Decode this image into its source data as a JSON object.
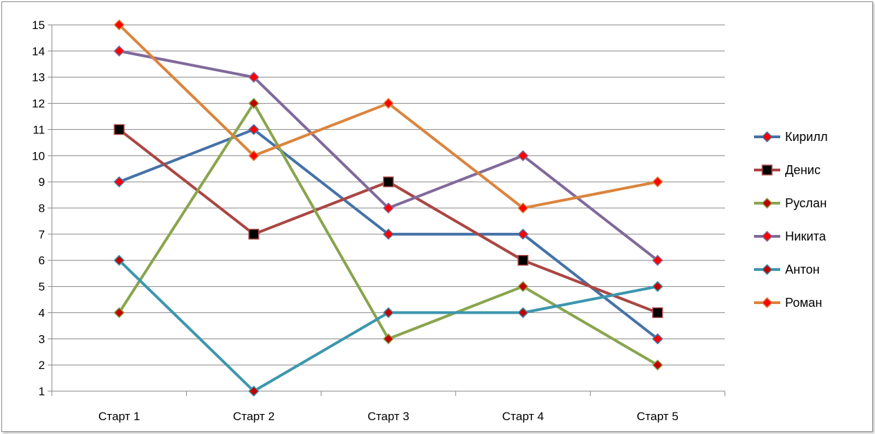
{
  "chart_data": {
    "type": "line",
    "title": "",
    "xlabel": "",
    "ylabel": "",
    "categories": [
      "Старт 1",
      "Старт 2",
      "Старт 3",
      "Старт 4",
      "Старт 5"
    ],
    "ylim": [
      1,
      15
    ],
    "yticks": [
      1,
      2,
      3,
      4,
      5,
      6,
      7,
      8,
      9,
      10,
      11,
      12,
      13,
      14,
      15
    ],
    "grid": true,
    "legend_position": "right",
    "series": [
      {
        "name": "Кирилл",
        "values": [
          9,
          11,
          7,
          7,
          3
        ],
        "color": "#4572A7",
        "marker": "diamond",
        "marker_color": "#FF0000"
      },
      {
        "name": "Денис",
        "values": [
          11,
          7,
          9,
          6,
          4
        ],
        "color": "#AA4643",
        "marker": "square",
        "marker_color": "#000000"
      },
      {
        "name": "Руслан",
        "values": [
          4,
          12,
          3,
          5,
          2
        ],
        "color": "#89A54E",
        "marker": "diamond",
        "marker_color": "#C00000"
      },
      {
        "name": "Никита",
        "values": [
          14,
          13,
          8,
          10,
          6
        ],
        "color": "#80699B",
        "marker": "diamond",
        "marker_color": "#FF0000"
      },
      {
        "name": "Антон",
        "values": [
          6,
          1,
          4,
          4,
          5
        ],
        "color": "#3D96AE",
        "marker": "diamond",
        "marker_color": "#C00000"
      },
      {
        "name": "Роман",
        "values": [
          15,
          10,
          12,
          8,
          9
        ],
        "color": "#DB843D",
        "marker": "diamond",
        "marker_color": "#FF0000"
      }
    ]
  }
}
